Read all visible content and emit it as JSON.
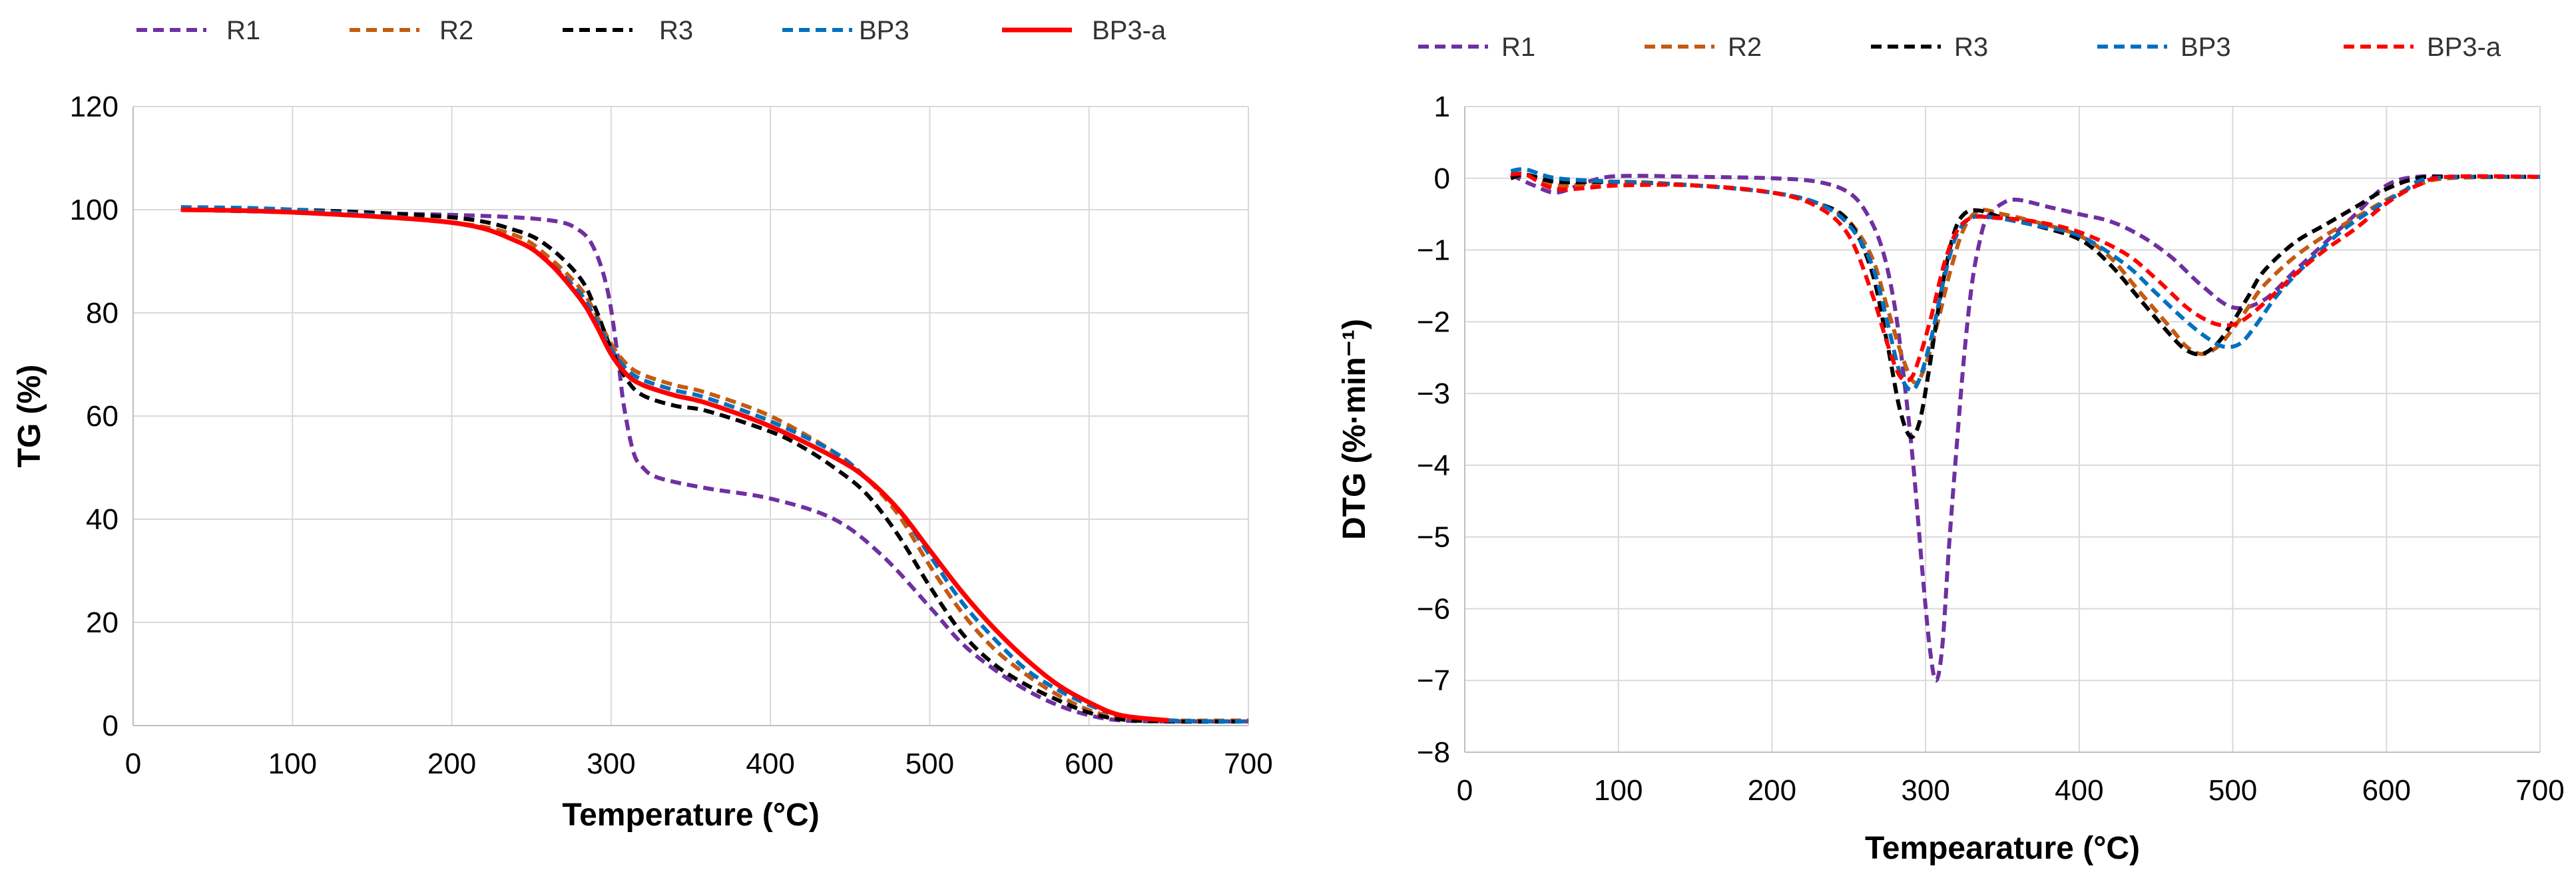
{
  "chart_data": [
    {
      "type": "line",
      "title": "",
      "xlabel": "Temperature (°C)",
      "ylabel": "TG (%)",
      "xlim": [
        0,
        700
      ],
      "ylim": [
        0,
        120
      ],
      "xticks": [
        "0",
        "100",
        "200",
        "300",
        "400",
        "500",
        "600",
        "700"
      ],
      "yticks": [
        "0",
        "20",
        "40",
        "60",
        "80",
        "100",
        "120"
      ],
      "grid": true,
      "legend_position": "top",
      "series": [
        {
          "name": "R1",
          "color": "#7030a0",
          "dash": "dashed",
          "x": [
            30,
            100,
            200,
            260,
            280,
            290,
            298,
            304,
            308,
            314,
            320,
            330,
            360,
            400,
            440,
            470,
            500,
            520,
            540,
            560,
            580,
            600,
            620,
            650,
            700
          ],
          "y": [
            100,
            99.5,
            99,
            98,
            96,
            92,
            84,
            72,
            62,
            53,
            50,
            48,
            46,
            44,
            40,
            33,
            23,
            16,
            11,
            7,
            4,
            2,
            1,
            0.8,
            0.8
          ]
        },
        {
          "name": "R2",
          "color": "#c55a11",
          "dash": "dashed",
          "x": [
            30,
            100,
            200,
            240,
            260,
            280,
            290,
            300,
            310,
            320,
            340,
            360,
            400,
            440,
            460,
            480,
            500,
            520,
            540,
            560,
            580,
            600,
            620,
            650,
            700
          ],
          "y": [
            100,
            99.5,
            97.5,
            95,
            91,
            85,
            80,
            74,
            70,
            68,
            66,
            64.5,
            60,
            53,
            48,
            41,
            31,
            22,
            15,
            10,
            6,
            3,
            1.5,
            1,
            1
          ]
        },
        {
          "name": "R3",
          "color": "#000000",
          "dash": "dashed",
          "x": [
            30,
            100,
            200,
            240,
            260,
            280,
            290,
            300,
            310,
            320,
            340,
            360,
            400,
            420,
            440,
            460,
            480,
            500,
            520,
            540,
            560,
            580,
            600,
            620,
            650,
            700
          ],
          "y": [
            100,
            100,
            98.5,
            96,
            93,
            87,
            81,
            73,
            67,
            64,
            62,
            61,
            57,
            54,
            50,
            45,
            37,
            27,
            18,
            12,
            8,
            5,
            2.5,
            1.2,
            0.8,
            0.8
          ]
        },
        {
          "name": "BP3",
          "color": "#0070c0",
          "dash": "dashed",
          "x": [
            30,
            100,
            200,
            240,
            260,
            280,
            290,
            300,
            310,
            320,
            340,
            360,
            400,
            440,
            460,
            480,
            500,
            520,
            540,
            560,
            580,
            600,
            620,
            650,
            700
          ],
          "y": [
            100.5,
            100,
            97.5,
            94,
            90,
            84,
            79,
            73,
            69,
            67,
            65,
            63.5,
            59,
            53,
            48,
            42,
            33,
            24,
            17,
            11,
            7,
            4,
            2,
            1,
            0.8
          ]
        },
        {
          "name": "BP3-a",
          "color": "#ff0000",
          "dash": "solid",
          "x": [
            30,
            100,
            200,
            240,
            260,
            280,
            290,
            300,
            310,
            320,
            340,
            360,
            400,
            440,
            460,
            480,
            500,
            520,
            540,
            560,
            580,
            600,
            620,
            650
          ],
          "y": [
            100,
            99.5,
            97.5,
            94,
            90,
            83,
            78,
            72,
            68,
            66,
            64,
            62.5,
            58,
            52,
            48,
            42,
            34,
            26,
            19,
            13,
            8,
            4.5,
            2,
            1
          ]
        }
      ]
    },
    {
      "type": "line",
      "title": "",
      "xlabel": "Tempearature (°C)",
      "ylabel": "DTG (%·min⁻¹)",
      "xlim": [
        0,
        700
      ],
      "ylim": [
        -8,
        1
      ],
      "xticks": [
        "0",
        "100",
        "200",
        "300",
        "400",
        "500",
        "600",
        "700"
      ],
      "yticks": [
        "1",
        "0",
        "−1",
        "−2",
        "−3",
        "−4",
        "−5",
        "−6",
        "−7",
        "−8"
      ],
      "grid": true,
      "legend_position": "top",
      "series": [
        {
          "name": "R1",
          "color": "#7030a0",
          "dash": "dashed",
          "x": [
            30,
            45,
            60,
            80,
            100,
            150,
            200,
            230,
            250,
            262,
            272,
            280,
            286,
            292,
            298,
            303,
            307,
            311,
            315,
            320,
            325,
            330,
            335,
            340,
            350,
            360,
            380,
            400,
            420,
            440,
            460,
            480,
            500,
            520,
            540,
            560,
            580,
            600,
            620,
            650,
            700
          ],
          "y": [
            0.05,
            -0.1,
            -0.2,
            -0.05,
            0.03,
            0.02,
            0,
            -0.05,
            -0.2,
            -0.5,
            -1,
            -1.8,
            -2.8,
            -4,
            -5.5,
            -6.6,
            -7,
            -6.5,
            -5.2,
            -3.8,
            -2.5,
            -1.5,
            -0.9,
            -0.55,
            -0.35,
            -0.3,
            -0.4,
            -0.5,
            -0.6,
            -0.8,
            -1.1,
            -1.5,
            -1.8,
            -1.7,
            -1.3,
            -0.9,
            -0.5,
            -0.1,
            0.02,
            0.02,
            0.02
          ]
        },
        {
          "name": "R2",
          "color": "#c55a11",
          "dash": "dashed",
          "x": [
            30,
            40,
            60,
            100,
            150,
            200,
            230,
            250,
            265,
            275,
            285,
            293,
            300,
            308,
            316,
            325,
            335,
            350,
            370,
            400,
            420,
            440,
            460,
            470,
            480,
            490,
            500,
            510,
            520,
            540,
            560,
            580,
            600,
            620,
            640,
            700
          ],
          "y": [
            0,
            0.05,
            -0.1,
            -0.05,
            -0.1,
            -0.2,
            -0.35,
            -0.6,
            -1.1,
            -1.8,
            -2.5,
            -2.85,
            -2.6,
            -2,
            -1.3,
            -0.7,
            -0.45,
            -0.5,
            -0.6,
            -0.8,
            -1.1,
            -1.6,
            -2.1,
            -2.35,
            -2.45,
            -2.35,
            -2.1,
            -1.8,
            -1.5,
            -1.1,
            -0.8,
            -0.55,
            -0.3,
            -0.1,
            0,
            0.02
          ]
        },
        {
          "name": "R3",
          "color": "#000000",
          "dash": "dashed",
          "x": [
            30,
            40,
            60,
            100,
            150,
            200,
            230,
            250,
            265,
            275,
            283,
            290,
            296,
            302,
            310,
            318,
            325,
            335,
            350,
            370,
            400,
            420,
            440,
            460,
            470,
            480,
            490,
            500,
            510,
            520,
            540,
            560,
            580,
            600,
            620,
            640,
            700
          ],
          "y": [
            0,
            0.05,
            -0.05,
            -0.05,
            -0.1,
            -0.2,
            -0.35,
            -0.6,
            -1.3,
            -2.3,
            -3.2,
            -3.6,
            -3.4,
            -2.7,
            -1.6,
            -0.8,
            -0.5,
            -0.45,
            -0.55,
            -0.65,
            -0.85,
            -1.2,
            -1.7,
            -2.2,
            -2.4,
            -2.45,
            -2.3,
            -2.0,
            -1.65,
            -1.3,
            -0.9,
            -0.65,
            -0.4,
            -0.15,
            0,
            0.02,
            0.02
          ]
        },
        {
          "name": "BP3",
          "color": "#0070c0",
          "dash": "dashed",
          "x": [
            30,
            40,
            60,
            100,
            150,
            200,
            230,
            250,
            265,
            275,
            283,
            290,
            296,
            304,
            312,
            320,
            330,
            345,
            370,
            400,
            430,
            450,
            470,
            485,
            495,
            505,
            515,
            530,
            550,
            570,
            590,
            610,
            630,
            700
          ],
          "y": [
            0.1,
            0.12,
            0,
            -0.05,
            -0.1,
            -0.2,
            -0.35,
            -0.65,
            -1.2,
            -2,
            -2.7,
            -2.95,
            -2.8,
            -2.2,
            -1.4,
            -0.8,
            -0.55,
            -0.55,
            -0.65,
            -0.8,
            -1.2,
            -1.6,
            -2.0,
            -2.25,
            -2.35,
            -2.3,
            -2.05,
            -1.6,
            -1.15,
            -0.75,
            -0.45,
            -0.2,
            0,
            0.02
          ]
        },
        {
          "name": "BP3-a",
          "color": "#ff0000",
          "dash": "dashed",
          "x": [
            30,
            40,
            60,
            100,
            150,
            200,
            230,
            250,
            265,
            275,
            283,
            290,
            296,
            304,
            312,
            320,
            330,
            345,
            370,
            400,
            430,
            450,
            470,
            485,
            495,
            505,
            520,
            540,
            560,
            580,
            600,
            620,
            640,
            700
          ],
          "y": [
            0.05,
            0.05,
            -0.15,
            -0.1,
            -0.1,
            -0.2,
            -0.4,
            -0.8,
            -1.6,
            -2.3,
            -2.75,
            -2.8,
            -2.5,
            -1.9,
            -1.2,
            -0.75,
            -0.55,
            -0.55,
            -0.6,
            -0.75,
            -1.05,
            -1.4,
            -1.8,
            -2.0,
            -2.05,
            -2.0,
            -1.75,
            -1.35,
            -1.0,
            -0.7,
            -0.35,
            -0.1,
            0.02,
            0.02
          ]
        }
      ]
    }
  ]
}
